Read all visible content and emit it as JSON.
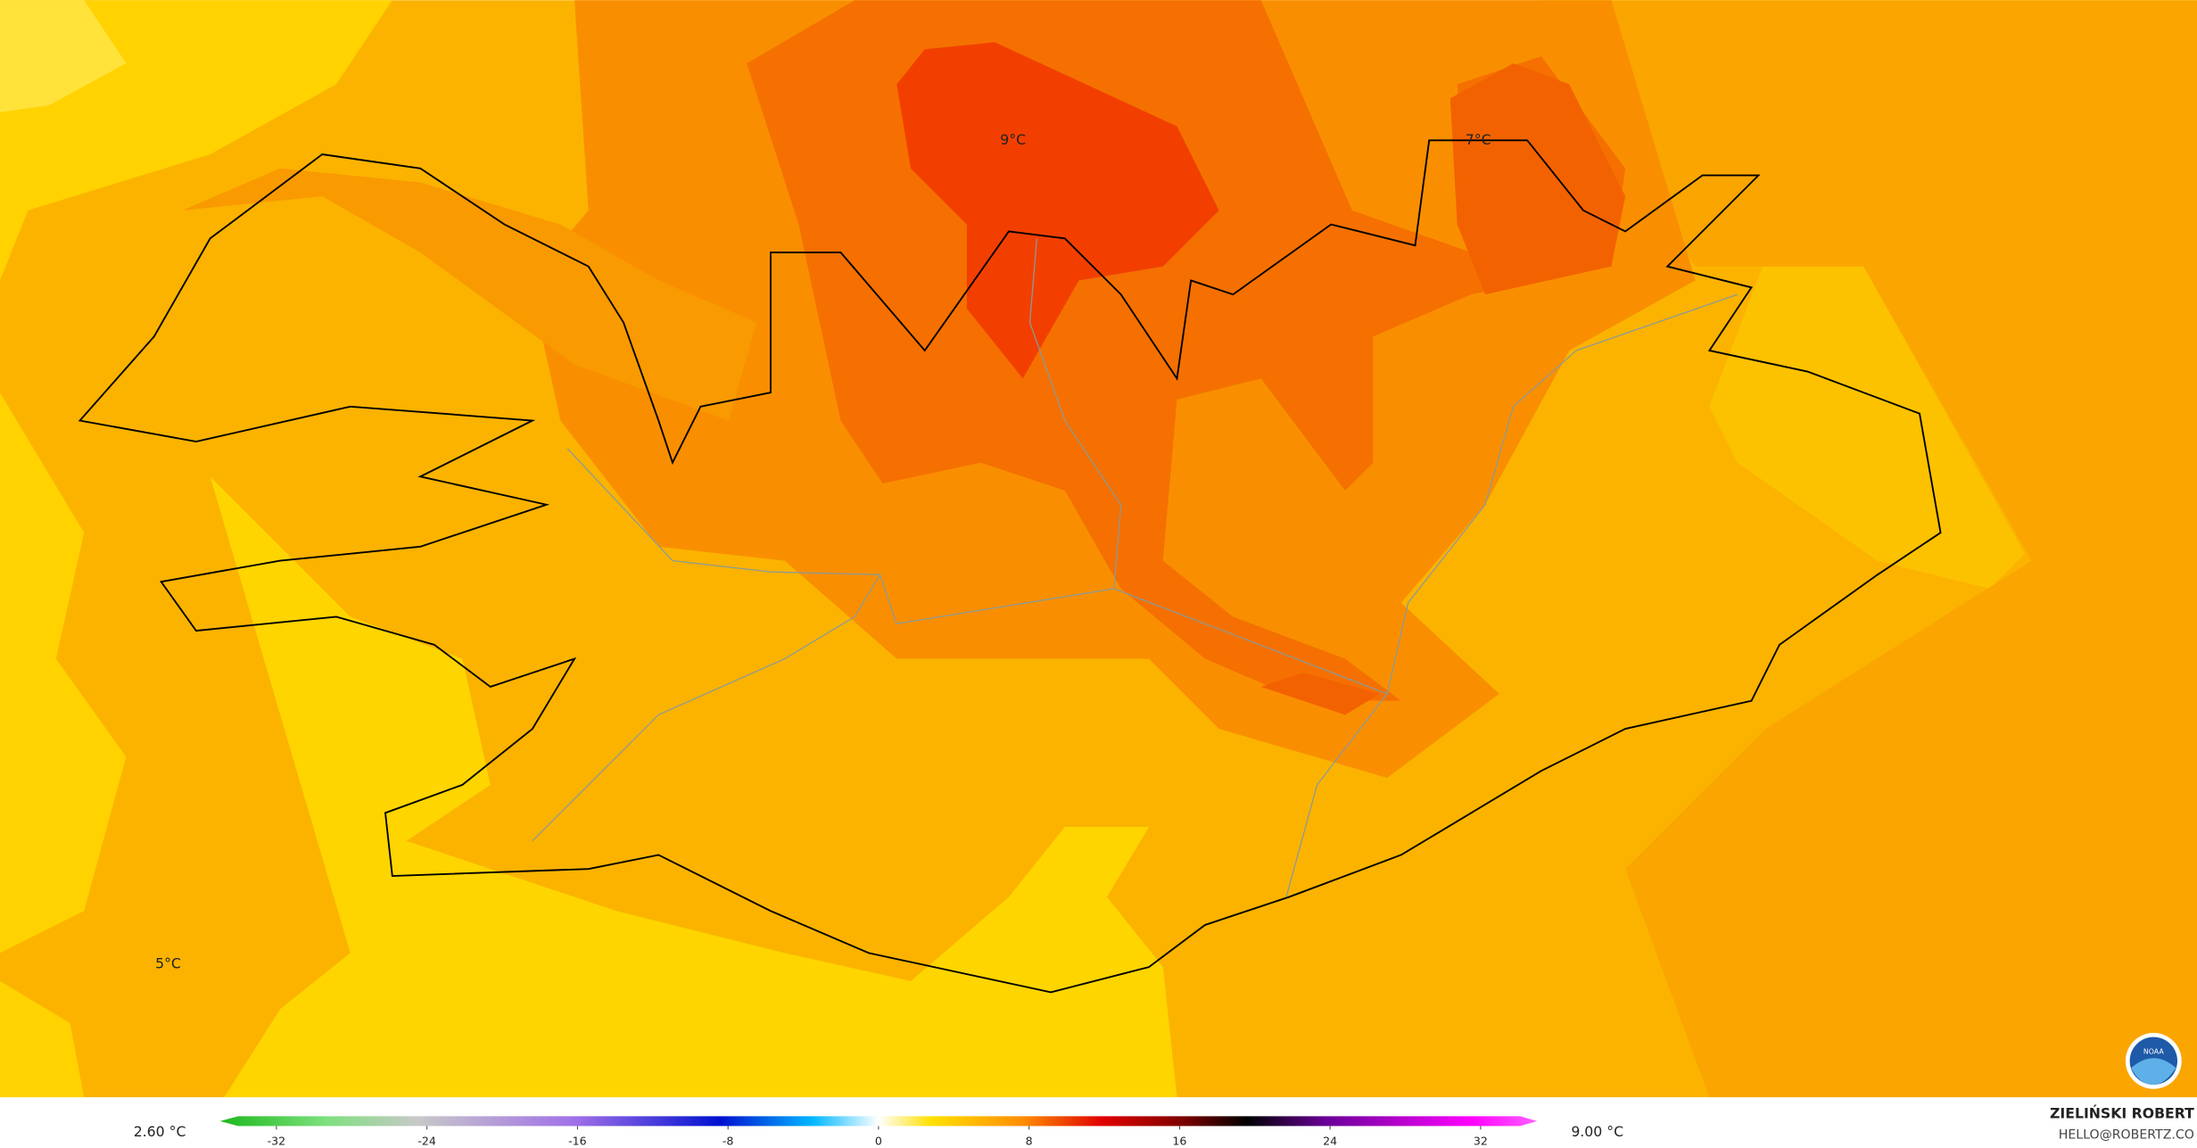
{
  "map": {
    "labels": [
      "9°C",
      "7°C",
      "5°C"
    ]
  },
  "colorbar": {
    "min_label": "2.60 °C",
    "max_label": "9.00 °C",
    "range": [
      -35,
      35
    ],
    "ticks": [
      -32,
      -24,
      -16,
      -8,
      0,
      8,
      16,
      24,
      32
    ]
  },
  "credit": {
    "name": "ZIELIŃSKI ROBERT",
    "email": "HELLO@ROBERTZ.CO"
  }
}
